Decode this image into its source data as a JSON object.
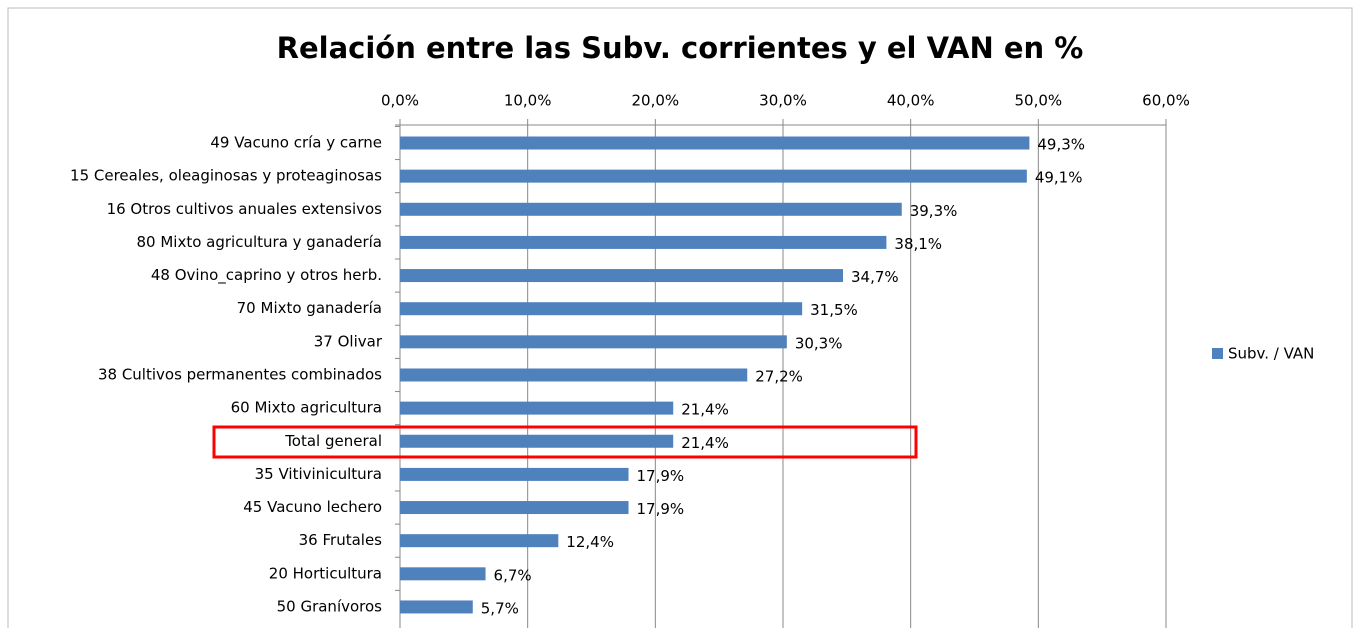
{
  "chart_data": {
    "type": "bar",
    "orientation": "horizontal",
    "title": "Relación entre las Subv. corrientes y el VAN en %",
    "categories": [
      "49 Vacuno cría y carne",
      "15 Cereales, oleaginosas y proteaginosas",
      "16 Otros cultivos anuales extensivos",
      "80 Mixto agricultura y ganadería",
      "48 Ovino_caprino y otros herb.",
      "70 Mixto ganadería",
      "37 Olivar",
      "38 Cultivos permanentes combinados",
      "60 Mixto agricultura",
      "Total general",
      "35 Vitivinicultura",
      "45 Vacuno lechero",
      "36 Frutales",
      "20 Horticultura",
      "50 Granívoros"
    ],
    "series": [
      {
        "name": "Subv. / VAN",
        "color": "#4f81bd",
        "values": [
          49.3,
          49.1,
          39.3,
          38.1,
          34.7,
          31.5,
          30.3,
          27.2,
          21.4,
          21.4,
          17.9,
          17.9,
          12.4,
          6.7,
          5.7
        ],
        "value_labels": [
          "49,3%",
          "49,1%",
          "39,3%",
          "38,1%",
          "34,7%",
          "31,5%",
          "30,3%",
          "27,2%",
          "21,4%",
          "21,4%",
          "17,9%",
          "17,9%",
          "12,4%",
          "6,7%",
          "5,7%"
        ]
      }
    ],
    "xlim": [
      0,
      60
    ],
    "xticks": [
      {
        "value": 0,
        "label": "0,0%"
      },
      {
        "value": 10,
        "label": "10,0%"
      },
      {
        "value": 20,
        "label": "20,0%"
      },
      {
        "value": 30,
        "label": "30,0%"
      },
      {
        "value": 40,
        "label": "40,0%"
      },
      {
        "value": 50,
        "label": "50,0%"
      },
      {
        "value": 60,
        "label": "60,0%"
      }
    ],
    "grid": true,
    "legend": "right"
  }
}
